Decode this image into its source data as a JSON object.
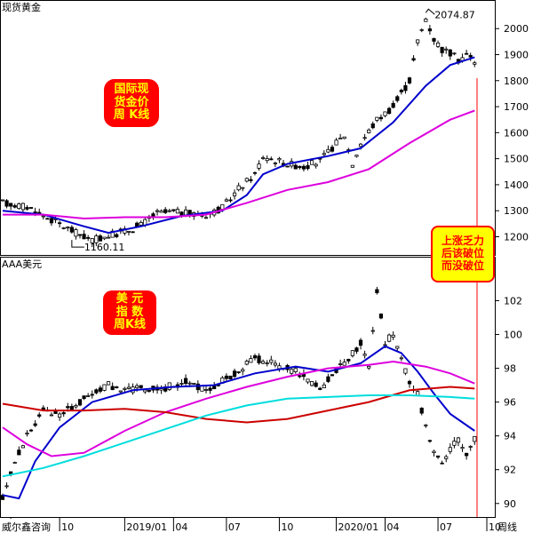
{
  "chart_data": [
    {
      "type": "candlestick",
      "title": "现货黄金",
      "box_label": "国际现\n货金价\n周 K线",
      "ylim": [
        1130,
        2110
      ],
      "yticks": [
        1200,
        1300,
        1400,
        1500,
        1600,
        1700,
        1800,
        1900,
        2000
      ],
      "annotations": {
        "high": "2074.87",
        "low": "1160.11"
      },
      "anchor_points": [
        {
          "t": 0,
          "v": 1330
        },
        {
          "t": 6,
          "v": 1315
        },
        {
          "t": 12,
          "v": 1265
        },
        {
          "t": 18,
          "v": 1215
        },
        {
          "t": 22,
          "v": 1185
        },
        {
          "t": 26,
          "v": 1205
        },
        {
          "t": 30,
          "v": 1220
        },
        {
          "t": 34,
          "v": 1245
        },
        {
          "t": 38,
          "v": 1290
        },
        {
          "t": 42,
          "v": 1295
        },
        {
          "t": 46,
          "v": 1288
        },
        {
          "t": 50,
          "v": 1285
        },
        {
          "t": 54,
          "v": 1310
        },
        {
          "t": 58,
          "v": 1385
        },
        {
          "t": 62,
          "v": 1440
        },
        {
          "t": 64,
          "v": 1510
        },
        {
          "t": 66,
          "v": 1500
        },
        {
          "t": 70,
          "v": 1480
        },
        {
          "t": 74,
          "v": 1470
        },
        {
          "t": 78,
          "v": 1490
        },
        {
          "t": 82,
          "v": 1560
        },
        {
          "t": 84,
          "v": 1590
        },
        {
          "t": 86,
          "v": 1480
        },
        {
          "t": 88,
          "v": 1560
        },
        {
          "t": 92,
          "v": 1650
        },
        {
          "t": 96,
          "v": 1700
        },
        {
          "t": 100,
          "v": 1800
        },
        {
          "t": 102,
          "v": 1950
        },
        {
          "t": 104,
          "v": 2040
        },
        {
          "t": 106,
          "v": 1960
        },
        {
          "t": 108,
          "v": 1920
        },
        {
          "t": 110,
          "v": 1905
        },
        {
          "t": 112,
          "v": 1880
        },
        {
          "t": 114,
          "v": 1900
        },
        {
          "t": 116,
          "v": 1875
        }
      ],
      "series": [
        {
          "color": "#0000cc",
          "values": [
            [
              0,
              1300
            ],
            [
              10,
              1285
            ],
            [
              20,
              1240
            ],
            [
              26,
              1215
            ],
            [
              34,
              1240
            ],
            [
              44,
              1280
            ],
            [
              54,
              1300
            ],
            [
              60,
              1360
            ],
            [
              64,
              1440
            ],
            [
              70,
              1480
            ],
            [
              80,
              1510
            ],
            [
              88,
              1540
            ],
            [
              96,
              1640
            ],
            [
              104,
              1780
            ],
            [
              110,
              1860
            ],
            [
              116,
              1890
            ]
          ]
        },
        {
          "color": "#dd00dd",
          "values": [
            [
              0,
              1285
            ],
            [
              10,
              1285
            ],
            [
              20,
              1270
            ],
            [
              30,
              1275
            ],
            [
              40,
              1275
            ],
            [
              50,
              1285
            ],
            [
              60,
              1330
            ],
            [
              70,
              1380
            ],
            [
              80,
              1410
            ],
            [
              90,
              1460
            ],
            [
              100,
              1560
            ],
            [
              110,
              1650
            ],
            [
              116,
              1685
            ]
          ]
        }
      ]
    },
    {
      "type": "candlestick",
      "title": "AAA美元",
      "box_label": "美 元\n指 数\n周K线",
      "ylim": [
        89.2,
        104.6
      ],
      "yticks": [
        90,
        92,
        94,
        96,
        98,
        100,
        102
      ],
      "anchor_points": [
        {
          "t": 0,
          "v": 90.3
        },
        {
          "t": 3,
          "v": 92.5
        },
        {
          "t": 6,
          "v": 94.0
        },
        {
          "t": 10,
          "v": 95.5
        },
        {
          "t": 14,
          "v": 95.3
        },
        {
          "t": 18,
          "v": 95.8
        },
        {
          "t": 22,
          "v": 96.5
        },
        {
          "t": 26,
          "v": 97.0
        },
        {
          "t": 30,
          "v": 96.7
        },
        {
          "t": 34,
          "v": 96.8
        },
        {
          "t": 38,
          "v": 96.7
        },
        {
          "t": 42,
          "v": 97.0
        },
        {
          "t": 46,
          "v": 97.3
        },
        {
          "t": 50,
          "v": 96.6
        },
        {
          "t": 54,
          "v": 97.3
        },
        {
          "t": 58,
          "v": 97.8
        },
        {
          "t": 62,
          "v": 98.6
        },
        {
          "t": 66,
          "v": 98.3
        },
        {
          "t": 70,
          "v": 98.0
        },
        {
          "t": 74,
          "v": 97.6
        },
        {
          "t": 78,
          "v": 96.8
        },
        {
          "t": 82,
          "v": 97.8
        },
        {
          "t": 86,
          "v": 98.9
        },
        {
          "t": 88,
          "v": 99.5
        },
        {
          "t": 90,
          "v": 98.0
        },
        {
          "t": 92,
          "v": 102.6
        },
        {
          "t": 94,
          "v": 99.5
        },
        {
          "t": 96,
          "v": 100.0
        },
        {
          "t": 98,
          "v": 98.5
        },
        {
          "t": 100,
          "v": 97.3
        },
        {
          "t": 102,
          "v": 96.5
        },
        {
          "t": 104,
          "v": 94.5
        },
        {
          "t": 106,
          "v": 93.0
        },
        {
          "t": 108,
          "v": 92.5
        },
        {
          "t": 110,
          "v": 93.2
        },
        {
          "t": 112,
          "v": 93.8
        },
        {
          "t": 114,
          "v": 93.0
        },
        {
          "t": 116,
          "v": 93.8
        }
      ],
      "series": [
        {
          "color": "#0000cc",
          "values": [
            [
              0,
              90.5
            ],
            [
              4,
              90.3
            ],
            [
              8,
              92.5
            ],
            [
              14,
              94.5
            ],
            [
              22,
              96.0
            ],
            [
              32,
              96.7
            ],
            [
              42,
              96.9
            ],
            [
              52,
              97.0
            ],
            [
              62,
              97.7
            ],
            [
              72,
              98.1
            ],
            [
              80,
              97.8
            ],
            [
              88,
              98.3
            ],
            [
              94,
              99.3
            ],
            [
              98,
              98.9
            ],
            [
              102,
              97.8
            ],
            [
              106,
              96.5
            ],
            [
              110,
              95.3
            ],
            [
              116,
              94.3
            ]
          ]
        },
        {
          "color": "#dd00dd",
          "values": [
            [
              0,
              94.5
            ],
            [
              6,
              93.5
            ],
            [
              12,
              92.8
            ],
            [
              20,
              93.0
            ],
            [
              30,
              94.3
            ],
            [
              40,
              95.4
            ],
            [
              50,
              96.2
            ],
            [
              60,
              96.9
            ],
            [
              70,
              97.5
            ],
            [
              80,
              98.0
            ],
            [
              90,
              98.2
            ],
            [
              96,
              98.4
            ],
            [
              104,
              98.1
            ],
            [
              110,
              97.7
            ],
            [
              116,
              97.1
            ]
          ]
        },
        {
          "color": "#cc0000",
          "values": [
            [
              0,
              95.9
            ],
            [
              10,
              95.5
            ],
            [
              20,
              95.5
            ],
            [
              30,
              95.6
            ],
            [
              40,
              95.4
            ],
            [
              50,
              95.0
            ],
            [
              60,
              94.8
            ],
            [
              70,
              95.0
            ],
            [
              80,
              95.5
            ],
            [
              90,
              96.0
            ],
            [
              100,
              96.7
            ],
            [
              110,
              96.9
            ],
            [
              116,
              96.8
            ]
          ]
        },
        {
          "color": "#00dddd",
          "values": [
            [
              0,
              91.6
            ],
            [
              10,
              92.1
            ],
            [
              20,
              92.8
            ],
            [
              30,
              93.6
            ],
            [
              40,
              94.4
            ],
            [
              50,
              95.2
            ],
            [
              60,
              95.8
            ],
            [
              70,
              96.2
            ],
            [
              80,
              96.3
            ],
            [
              90,
              96.4
            ],
            [
              100,
              96.4
            ],
            [
              110,
              96.3
            ],
            [
              116,
              96.2
            ]
          ]
        }
      ]
    }
  ],
  "x_axis": {
    "ticks": [
      {
        "t": 2,
        "label": "'"
      },
      {
        "t": 14,
        "label": "10"
      },
      {
        "t": 30,
        "label": "2019/01"
      },
      {
        "t": 42,
        "label": "04"
      },
      {
        "t": 55,
        "label": "07"
      },
      {
        "t": 68,
        "label": "10"
      },
      {
        "t": 82,
        "label": "2020/01"
      },
      {
        "t": 94,
        "label": "04"
      },
      {
        "t": 107,
        "label": "07"
      },
      {
        "t": 119,
        "label": "10"
      }
    ],
    "source": "威尔鑫咨询",
    "period": "周线"
  },
  "annotation": "上涨乏力\n后该破位\n而没破位",
  "colors": {
    "up": "#000000",
    "down": "#000000",
    "marker_line": "#ff0000",
    "frame": "#000000"
  }
}
